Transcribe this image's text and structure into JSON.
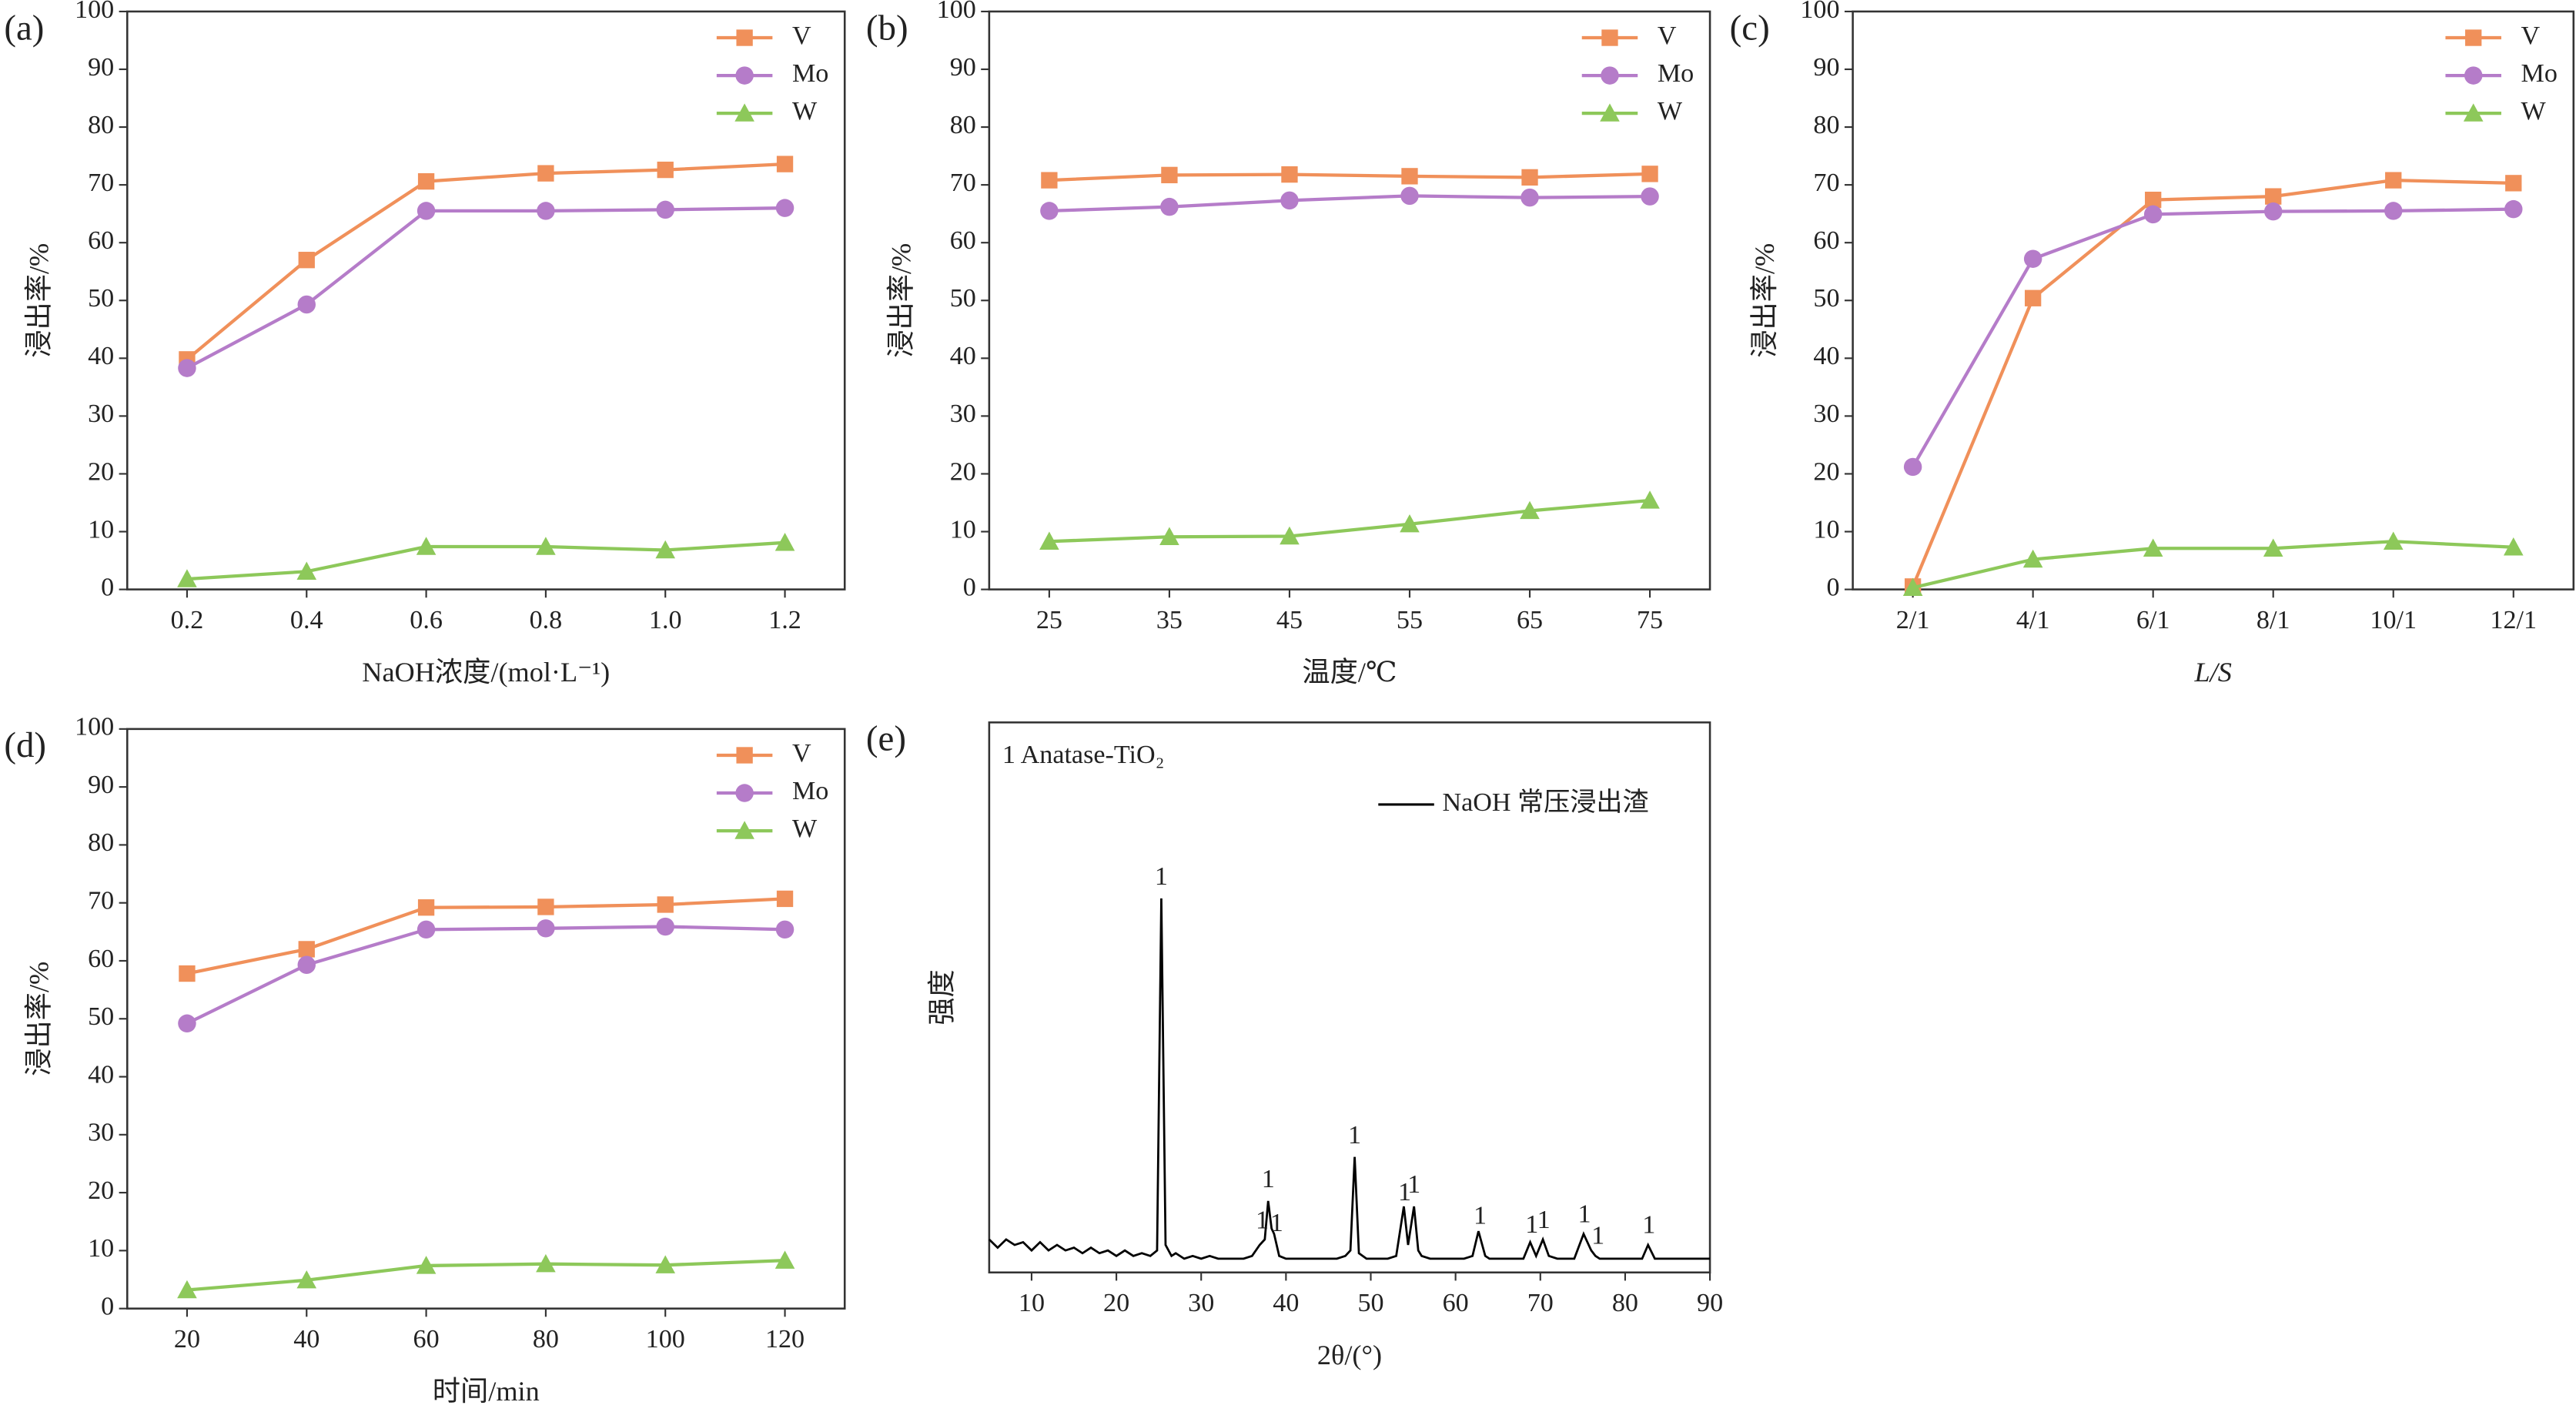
{
  "chart_data": [
    {
      "type": "line",
      "label": "(a)",
      "xlabel": "NaOH浓度/(mol·L⁻¹)",
      "ylabel": "浸出率/%",
      "categories": [
        "0.2",
        "0.4",
        "0.6",
        "0.8",
        "1.0",
        "1.2"
      ],
      "ylim": [
        0,
        100
      ],
      "yticks": [
        0,
        10,
        20,
        30,
        40,
        50,
        60,
        70,
        80,
        90,
        100
      ],
      "legend": "upper right",
      "series": [
        {
          "name": "V",
          "color": "#f0905a",
          "marker": "square",
          "values": [
            39.8,
            57,
            70.6,
            72,
            72.6,
            73.6
          ]
        },
        {
          "name": "Mo",
          "color": "#b57cc9",
          "marker": "circle",
          "values": [
            38.3,
            49.3,
            65.5,
            65.5,
            65.7,
            66
          ]
        },
        {
          "name": "W",
          "color": "#8dc85a",
          "marker": "triangle",
          "values": [
            1.8,
            3.1,
            7.4,
            7.4,
            6.8,
            8.1
          ]
        }
      ]
    },
    {
      "type": "line",
      "label": "(b)",
      "xlabel": "温度/℃",
      "ylabel": "浸出率/%",
      "categories": [
        "25",
        "35",
        "45",
        "55",
        "65",
        "75"
      ],
      "ylim": [
        0,
        100
      ],
      "yticks": [
        0,
        10,
        20,
        30,
        40,
        50,
        60,
        70,
        80,
        90,
        100
      ],
      "legend": "upper right",
      "series": [
        {
          "name": "V",
          "color": "#f0905a",
          "marker": "square",
          "values": [
            70.8,
            71.7,
            71.8,
            71.5,
            71.3,
            71.9
          ]
        },
        {
          "name": "Mo",
          "color": "#b57cc9",
          "marker": "circle",
          "values": [
            65.5,
            66.2,
            67.3,
            68.1,
            67.8,
            68
          ]
        },
        {
          "name": "W",
          "color": "#8dc85a",
          "marker": "triangle",
          "values": [
            8.3,
            9.1,
            9.2,
            11.3,
            13.6,
            15.4
          ]
        }
      ]
    },
    {
      "type": "line",
      "label": "(c)",
      "xlabel": "L/S",
      "ylabel": "浸出率/%",
      "categories": [
        "2/1",
        "4/1",
        "6/1",
        "8/1",
        "10/1",
        "12/1"
      ],
      "ylim": [
        0,
        100
      ],
      "yticks": [
        0,
        10,
        20,
        30,
        40,
        50,
        60,
        70,
        80,
        90,
        100
      ],
      "legend": "upper right",
      "series": [
        {
          "name": "V",
          "color": "#f0905a",
          "marker": "square",
          "values": [
            0.5,
            50.4,
            67.4,
            68,
            70.8,
            70.3
          ]
        },
        {
          "name": "Mo",
          "color": "#b57cc9",
          "marker": "circle",
          "values": [
            21.2,
            57.2,
            64.9,
            65.4,
            65.5,
            65.8
          ]
        },
        {
          "name": "W",
          "color": "#8dc85a",
          "marker": "triangle",
          "values": [
            0.3,
            5.2,
            7.1,
            7.1,
            8.3,
            7.3
          ]
        }
      ]
    },
    {
      "type": "line",
      "label": "(d)",
      "xlabel": "时间/min",
      "ylabel": "浸出率/%",
      "categories": [
        "20",
        "40",
        "60",
        "80",
        "100",
        "120"
      ],
      "ylim": [
        0,
        100
      ],
      "yticks": [
        0,
        10,
        20,
        30,
        40,
        50,
        60,
        70,
        80,
        90,
        100
      ],
      "legend": "upper right",
      "series": [
        {
          "name": "V",
          "color": "#f0905a",
          "marker": "square",
          "values": [
            57.8,
            62,
            69.2,
            69.3,
            69.7,
            70.7
          ]
        },
        {
          "name": "Mo",
          "color": "#b57cc9",
          "marker": "circle",
          "values": [
            49.2,
            59.3,
            65.4,
            65.6,
            65.9,
            65.4
          ]
        },
        {
          "name": "W",
          "color": "#8dc85a",
          "marker": "triangle",
          "values": [
            3.2,
            4.9,
            7.4,
            7.7,
            7.5,
            8.3
          ]
        }
      ]
    },
    {
      "type": "line",
      "label": "(e)",
      "xlabel": "2θ/(°)",
      "ylabel": "强度",
      "annotation": "1 Anatase-TiO₂",
      "xlim": [
        5,
        90
      ],
      "xticks": [
        10,
        20,
        30,
        40,
        50,
        60,
        70,
        80,
        90
      ],
      "ylim": [
        0,
        100
      ],
      "legend": "upper right",
      "x": [
        5,
        6,
        7,
        8,
        9,
        10,
        11,
        12,
        13,
        14,
        15,
        16,
        17,
        18,
        19,
        20,
        21,
        22,
        23,
        24,
        24.8,
        25.3,
        25.8,
        26.5,
        27,
        28,
        29,
        30,
        31,
        32,
        33,
        34,
        35,
        36,
        36.9,
        37.5,
        37.9,
        38.3,
        38.6,
        39.2,
        40,
        41,
        42,
        43,
        44,
        45,
        46,
        47,
        47.6,
        48.1,
        48.6,
        49.5,
        50,
        51,
        52,
        53,
        53.9,
        54.4,
        55.1,
        55.6,
        56,
        57,
        58,
        59,
        60,
        61,
        62,
        62.7,
        63.5,
        64,
        65,
        66,
        67,
        68,
        68.8,
        69.5,
        70.3,
        71,
        72,
        73,
        74,
        75.1,
        76,
        76.5,
        77,
        78,
        79,
        80,
        81,
        82,
        82.7,
        83.5,
        84,
        85,
        86,
        87,
        88,
        89,
        90
      ],
      "series": [
        {
          "name": "NaOH 常压浸出渣",
          "color": "#000000",
          "values": [
            6,
            4.5,
            6,
            5,
            5.5,
            4,
            5.5,
            4,
            5,
            4,
            4.5,
            3.5,
            4.5,
            3.5,
            4,
            3,
            4,
            3,
            3.5,
            3,
            4,
            68,
            5,
            3,
            3.5,
            2.5,
            3,
            2.5,
            3,
            2.5,
            2.5,
            2.5,
            2.5,
            3,
            5,
            6,
            13,
            8,
            7,
            3,
            2.5,
            2.5,
            2.5,
            2.5,
            2.5,
            2.5,
            2.5,
            3,
            4,
            21,
            3.5,
            2.5,
            2.5,
            2.5,
            2.5,
            3,
            12,
            5,
            12,
            4,
            3,
            2.5,
            2.5,
            2.5,
            2.5,
            2.5,
            3,
            7.5,
            3,
            2.5,
            2.5,
            2.5,
            2.5,
            2.5,
            5.5,
            3,
            6,
            3,
            2.5,
            2.5,
            2.5,
            7,
            4,
            3,
            2.5,
            2.5,
            2.5,
            2.5,
            2.5,
            2.5,
            5,
            2.5,
            2.5,
            2.5,
            2.5,
            2.5,
            2.5,
            2.5,
            2.5
          ]
        }
      ],
      "peaks": [
        {
          "x": 25.3,
          "label": "1"
        },
        {
          "x": 37.9,
          "label": "1"
        },
        {
          "x": 37.2,
          "label": "1"
        },
        {
          "x": 38.9,
          "label": "1"
        },
        {
          "x": 48.1,
          "label": "1"
        },
        {
          "x": 54.0,
          "label": "1"
        },
        {
          "x": 55.1,
          "label": "1"
        },
        {
          "x": 62.9,
          "label": "1"
        },
        {
          "x": 69.0,
          "label": "1"
        },
        {
          "x": 70.4,
          "label": "1"
        },
        {
          "x": 75.2,
          "label": "1"
        },
        {
          "x": 76.8,
          "label": "1"
        },
        {
          "x": 82.8,
          "label": "1"
        }
      ]
    }
  ]
}
